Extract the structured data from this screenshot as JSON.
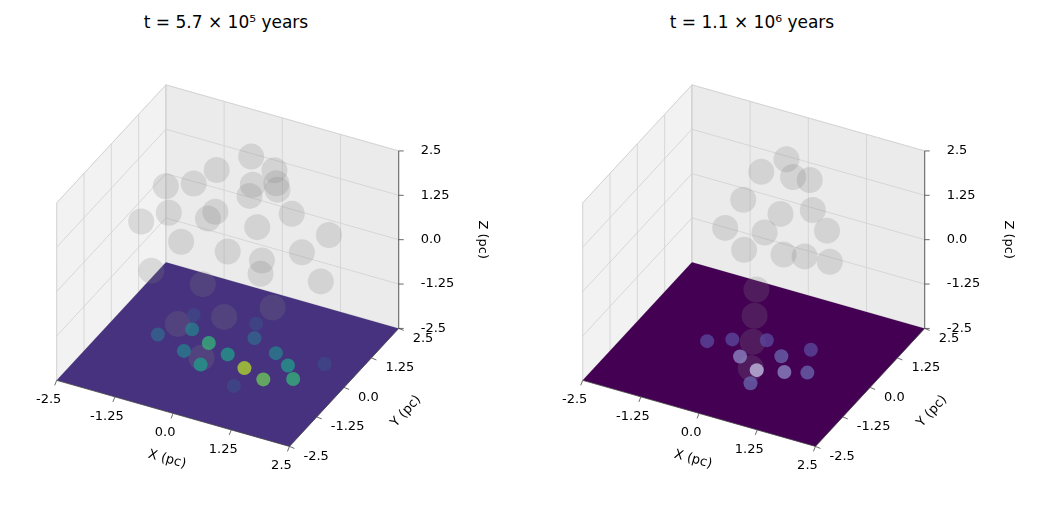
{
  "chart_data": [
    {
      "type": "scatter3d",
      "title": "t = 5.7 × 10⁵ years",
      "x_label": "X (pc)",
      "y_label": "Y (pc)",
      "z_label": "Z (pc)",
      "xlim": [
        -2.5,
        2.5
      ],
      "ylim": [
        -2.5,
        2.5
      ],
      "zlim": [
        -2.5,
        2.5
      ],
      "xticks": [
        -2.5,
        -1.25,
        {
          "value": 0,
          "label": "0.0"
        },
        1.25,
        2.5
      ],
      "yticks": [
        -2.5,
        -1.25,
        {
          "value": 0,
          "label": "0.0"
        },
        1.25,
        2.5
      ],
      "zticks": [
        -2.5,
        -1.25,
        {
          "value": 0,
          "label": "0.0"
        },
        1.25,
        2.5
      ],
      "grid": true,
      "gas": {
        "color": "#808080",
        "points": [
          [
            -0.2,
            1.5,
            2.0
          ],
          [
            0.3,
            1.5,
            1.8
          ],
          [
            -0.8,
            1.2,
            1.6
          ],
          [
            0.6,
            1.0,
            1.7
          ],
          [
            0.0,
            1.0,
            1.3
          ],
          [
            -1.2,
            1.0,
            1.2
          ],
          [
            1.0,
            0.8,
            1.3
          ],
          [
            -0.5,
            0.5,
            1.0
          ],
          [
            0.4,
            0.5,
            0.9
          ],
          [
            -1.5,
            0.5,
            0.6
          ],
          [
            1.5,
            0.2,
            0.8
          ],
          [
            -2.0,
            0.3,
            0.3
          ],
          [
            2.0,
            0.0,
            0.3
          ],
          [
            -1.0,
            0.0,
            0.3
          ],
          [
            0.0,
            0.0,
            0.4
          ],
          [
            0.8,
            -0.2,
            0.2
          ],
          [
            -0.3,
            -0.5,
            -0.3
          ],
          [
            0.3,
            -0.8,
            -0.8
          ],
          [
            -0.6,
            -1.0,
            -1.2
          ],
          [
            1.2,
            -0.5,
            -0.4
          ],
          [
            -1.5,
            -0.3,
            -0.5
          ],
          [
            0.0,
            -1.2,
            -1.8
          ],
          [
            0.5,
            0.5,
            0.0
          ],
          [
            -0.8,
            0.8,
            0.5
          ],
          [
            1.8,
            0.8,
            1.0
          ],
          [
            -1.8,
            1.0,
            0.9
          ],
          [
            0.2,
            1.8,
            1.2
          ],
          [
            -0.4,
            2.0,
            0.8
          ]
        ]
      },
      "projection": {
        "color": "#46327e",
        "points": [
          [
            0.5,
            -0.3
          ],
          [
            1.0,
            -0.5
          ],
          [
            -0.5,
            0.2
          ],
          [
            0.0,
            0.0
          ],
          [
            -1.0,
            0.5
          ],
          [
            0.8,
            0.5
          ],
          [
            -0.3,
            -0.6
          ],
          [
            1.5,
            -0.2
          ],
          [
            -1.5,
            0.0
          ],
          [
            0.2,
            0.8
          ],
          [
            -0.8,
            -0.3
          ],
          [
            1.2,
            0.2
          ],
          [
            0.0,
            1.3
          ],
          [
            -1.2,
            1.0
          ],
          [
            1.8,
            0.6
          ],
          [
            0.6,
            -1.0
          ]
        ],
        "colors": [
          "#b5de2b",
          "#6ece58",
          "#35b779",
          "#1f9e89",
          "#26828e",
          "#26828e",
          "#1f9e89",
          "#35b779",
          "#31688e",
          "#31688e",
          "#26828e",
          "#1f9e89",
          "#3e4a89",
          "#3e4a89",
          "#3e4a89",
          "#3e4a89"
        ]
      }
    },
    {
      "type": "scatter3d",
      "title": "t = 1.1 × 10⁶ years",
      "x_label": "X (pc)",
      "y_label": "Y (pc)",
      "z_label": "Z (pc)",
      "xlim": [
        -2.5,
        2.5
      ],
      "ylim": [
        -2.5,
        2.5
      ],
      "zlim": [
        -2.5,
        2.5
      ],
      "xticks": [
        -2.5,
        -1.25,
        {
          "value": 0,
          "label": "0.0"
        },
        1.25,
        2.5
      ],
      "yticks": [
        -2.5,
        -1.25,
        {
          "value": 0,
          "label": "0.0"
        },
        1.25,
        2.5
      ],
      "zticks": [
        -2.5,
        -1.25,
        {
          "value": 0,
          "label": "0.0"
        },
        1.25,
        2.5
      ],
      "grid": true,
      "gas": {
        "color": "#808080",
        "points": [
          [
            0.0,
            1.5,
            2.0
          ],
          [
            0.5,
            1.5,
            1.6
          ],
          [
            -0.4,
            1.2,
            1.7
          ],
          [
            0.8,
            1.0,
            1.2
          ],
          [
            0.2,
            0.8,
            1.0
          ],
          [
            -0.6,
            0.8,
            1.1
          ],
          [
            1.2,
            0.8,
            0.9
          ],
          [
            0.0,
            0.5,
            0.6
          ],
          [
            0.5,
            0.3,
            0.3
          ],
          [
            -0.3,
            0.2,
            0.2
          ],
          [
            0.2,
            -0.3,
            -0.4
          ],
          [
            0.3,
            -0.6,
            -0.9
          ],
          [
            0.4,
            -0.9,
            -1.4
          ],
          [
            0.5,
            -1.2,
            -1.9
          ],
          [
            1.0,
            0.2,
            0.5
          ],
          [
            -0.8,
            0.4,
            0.5
          ],
          [
            1.4,
            0.5,
            0.3
          ],
          [
            0.0,
            1.8,
            1.3
          ]
        ]
      },
      "projection": {
        "color": "#440154",
        "points": [
          [
            0.3,
            -0.5
          ],
          [
            0.8,
            -0.3
          ],
          [
            -0.2,
            -0.2
          ],
          [
            0.5,
            0.2
          ],
          [
            1.2,
            -0.1
          ],
          [
            -0.6,
            0.3
          ],
          [
            0.0,
            0.6
          ],
          [
            0.9,
            0.7
          ],
          [
            0.4,
            -1.0
          ],
          [
            -1.0,
            0.0
          ]
        ],
        "colors": [
          "#c8c4ea",
          "#8e8cc8",
          "#8e8cc8",
          "#6a68b0",
          "#6a68b0",
          "#5b4a9e",
          "#5b4a9e",
          "#5b4a9e",
          "#6a68b0",
          "#5b4a9e"
        ]
      }
    }
  ]
}
